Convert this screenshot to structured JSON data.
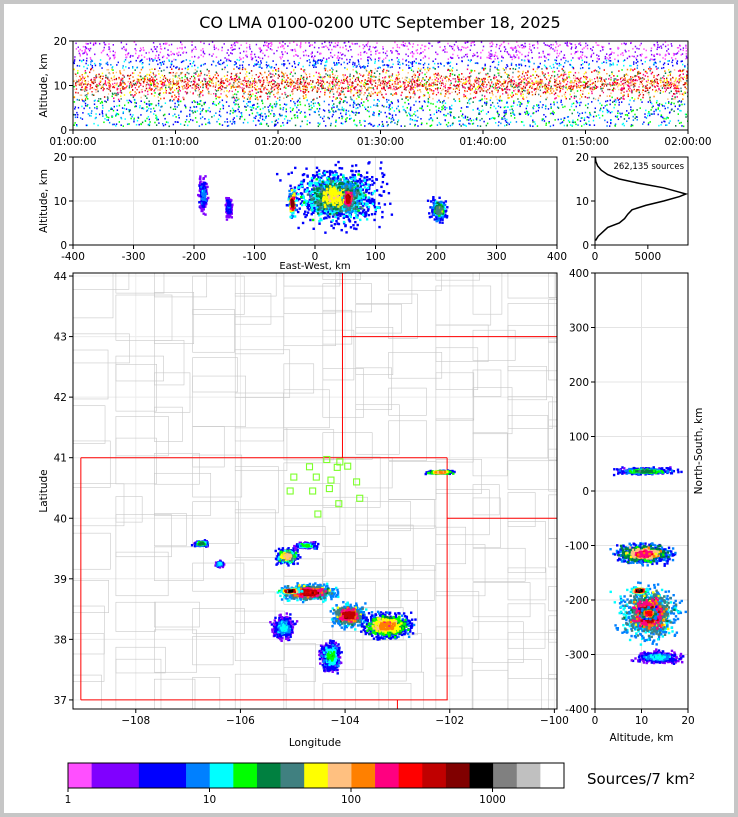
{
  "title": "CO LMA 0100-0200 UTC September 18, 2025",
  "chart_data": [
    {
      "panel": "time-altitude",
      "type": "heatmap",
      "xlabel": "",
      "ylabel": "Altitude, km",
      "x_ticks": [
        "01:00:00",
        "01:10:00",
        "01:20:00",
        "01:30:00",
        "01:40:00",
        "01:50:00",
        "02:00:00"
      ],
      "xlim": [
        "01:00:00",
        "02:00:00"
      ],
      "y_ticks": [
        0,
        10,
        20
      ],
      "ylim": [
        0,
        20
      ],
      "grid": true,
      "source_band_km": [
        1,
        20
      ],
      "densest_band_km": [
        7,
        14
      ]
    },
    {
      "panel": "east-west-altitude",
      "type": "heatmap",
      "xlabel": "East-West, km",
      "ylabel": "Altitude, km",
      "x_ticks": [
        -400,
        -300,
        -200,
        -100,
        0,
        100,
        200,
        300,
        400
      ],
      "xlim": [
        -400,
        400
      ],
      "y_ticks": [
        0,
        10,
        20
      ],
      "ylim": [
        0,
        20
      ],
      "grid": true,
      "clusters": [
        {
          "x": [
            -195,
            -175
          ],
          "z": [
            6,
            17
          ],
          "level": 5
        },
        {
          "x": [
            -150,
            -135
          ],
          "z": [
            5,
            12
          ],
          "level": 4
        },
        {
          "x": [
            -70,
            140
          ],
          "z": [
            2,
            20
          ],
          "level": 10
        },
        {
          "x": [
            -45,
            -30
          ],
          "z": [
            5,
            14
          ],
          "level": 16
        },
        {
          "x": [
            40,
            70
          ],
          "z": [
            6,
            15
          ],
          "level": 15
        },
        {
          "x": [
            185,
            225
          ],
          "z": [
            4,
            12
          ],
          "level": 9
        }
      ]
    },
    {
      "panel": "altitude-histogram",
      "type": "line",
      "annotation": "262,135 sources",
      "x_ticks": [
        0,
        5000
      ],
      "xlim": [
        0,
        8800
      ],
      "y_ticks": [
        0,
        10,
        20
      ],
      "ylim": [
        0,
        20
      ],
      "x": [
        50,
        300,
        1200,
        2300,
        2800,
        3100,
        3500,
        4800,
        6500,
        8000,
        8600,
        8000,
        6500,
        4200,
        2300,
        1200,
        600,
        250,
        80,
        30
      ],
      "y": [
        1,
        2,
        4,
        5,
        6,
        7,
        8,
        9,
        10,
        11,
        11.6,
        12,
        13,
        14,
        15,
        16,
        17,
        18,
        19,
        20
      ]
    },
    {
      "panel": "plan-view",
      "type": "heatmap",
      "xlabel": "Longitude",
      "ylabel": "Latitude",
      "x_ticks": [
        -108,
        -106,
        -104,
        -102,
        -100
      ],
      "xlim": [
        -109.2,
        -99.95
      ],
      "y_ticks": [
        37,
        38,
        39,
        40,
        41,
        42,
        43,
        44
      ],
      "ylim": [
        36.85,
        44.05
      ],
      "grid": true,
      "state_borders": [
        [
          [
            -109.05,
            37.0
          ],
          [
            -102.04,
            37.0
          ]
        ],
        [
          [
            -109.05,
            37.0
          ],
          [
            -109.05,
            41.0
          ]
        ],
        [
          [
            -109.05,
            41.0
          ],
          [
            -102.05,
            41.0
          ]
        ],
        [
          [
            -102.05,
            37.0
          ],
          [
            -102.05,
            41.0
          ]
        ],
        [
          [
            -104.05,
            41.0
          ],
          [
            -104.05,
            44.05
          ]
        ],
        [
          [
            -104.05,
            43.0
          ],
          [
            -99.95,
            43.0
          ]
        ],
        [
          [
            -102.05,
            40.0
          ],
          [
            -99.95,
            40.0
          ]
        ],
        [
          [
            -103.0,
            36.85
          ],
          [
            -103.0,
            37.0
          ]
        ]
      ],
      "stations": [
        [
          -104.35,
          40.97
        ],
        [
          -104.1,
          40.93
        ],
        [
          -104.15,
          40.84
        ],
        [
          -103.95,
          40.86
        ],
        [
          -104.68,
          40.85
        ],
        [
          -104.98,
          40.68
        ],
        [
          -104.55,
          40.68
        ],
        [
          -104.27,
          40.63
        ],
        [
          -103.78,
          40.6
        ],
        [
          -105.05,
          40.45
        ],
        [
          -104.62,
          40.45
        ],
        [
          -104.3,
          40.49
        ],
        [
          -103.72,
          40.33
        ],
        [
          -104.12,
          40.24
        ],
        [
          -104.52,
          40.07
        ]
      ],
      "clusters": [
        {
          "lon": [
            -106.95,
            -106.55
          ],
          "lat": [
            39.52,
            39.65
          ],
          "level": 8
        },
        {
          "lon": [
            -106.5,
            -106.3
          ],
          "lat": [
            39.18,
            39.32
          ],
          "level": 6
        },
        {
          "lon": [
            -105.4,
            -104.8
          ],
          "lat": [
            39.2,
            39.55
          ],
          "level": 11
        },
        {
          "lon": [
            -105.05,
            -104.45
          ],
          "lat": [
            39.48,
            39.62
          ],
          "level": 7
        },
        {
          "lon": [
            -105.4,
            -104.0
          ],
          "lat": [
            38.6,
            38.95
          ],
          "level": 15
        },
        {
          "lon": [
            -105.3,
            -104.8
          ],
          "lat": [
            38.75,
            38.85
          ],
          "level": 17
        },
        {
          "lon": [
            -104.35,
            -103.5
          ],
          "lat": [
            38.15,
            38.65
          ],
          "level": 15
        },
        {
          "lon": [
            -103.8,
            -102.6
          ],
          "lat": [
            37.95,
            38.5
          ],
          "level": 12
        },
        {
          "lon": [
            -104.55,
            -104.0
          ],
          "lat": [
            37.4,
            38.05
          ],
          "level": 7
        },
        {
          "lon": [
            -105.45,
            -104.9
          ],
          "lat": [
            37.95,
            38.45
          ],
          "level": 6
        },
        {
          "lon": [
            -102.55,
            -101.8
          ],
          "lat": [
            40.72,
            40.8
          ],
          "level": 12
        }
      ]
    },
    {
      "panel": "altitude-north-south",
      "type": "heatmap",
      "xlabel": "Altitude, km",
      "ylabel": "North-South, km",
      "x_ticks": [
        0,
        10,
        20
      ],
      "xlim": [
        0,
        20
      ],
      "y_ticks": [
        -400,
        -300,
        -200,
        -100,
        0,
        100,
        200,
        300,
        400
      ],
      "ylim": [
        -400,
        400
      ],
      "grid": true,
      "clusters": [
        {
          "z": [
            2,
            20
          ],
          "y": [
            28,
            45
          ],
          "level": 8
        },
        {
          "z": [
            2,
            19
          ],
          "y": [
            -140,
            -90
          ],
          "level": 13
        },
        {
          "z": [
            3,
            20
          ],
          "y": [
            -290,
            -160
          ],
          "level": 15
        },
        {
          "z": [
            7,
            12
          ],
          "y": [
            -190,
            -175
          ],
          "level": 17
        },
        {
          "z": [
            9,
            14
          ],
          "y": [
            -240,
            -210
          ],
          "level": 14
        },
        {
          "z": [
            7,
            20
          ],
          "y": [
            -320,
            -290
          ],
          "level": 6
        }
      ]
    }
  ],
  "colorbar": {
    "label": "Sources/7 km²",
    "tick_labels": [
      "1",
      "10",
      "100",
      "1000"
    ],
    "tick_values": [
      1,
      10,
      100,
      1000
    ],
    "range": [
      1,
      3200
    ],
    "colors": [
      "#ff4fff",
      "#8000ff",
      "#8000ff",
      "#0000ff",
      "#0000ff",
      "#0080ff",
      "#00ffff",
      "#00ff00",
      "#008040",
      "#408080",
      "#ffff00",
      "#ffc080",
      "#ff8000",
      "#ff0080",
      "#ff0000",
      "#c00000",
      "#800000",
      "#000000",
      "#808080",
      "#c0c0c0",
      "#ffffff"
    ]
  }
}
